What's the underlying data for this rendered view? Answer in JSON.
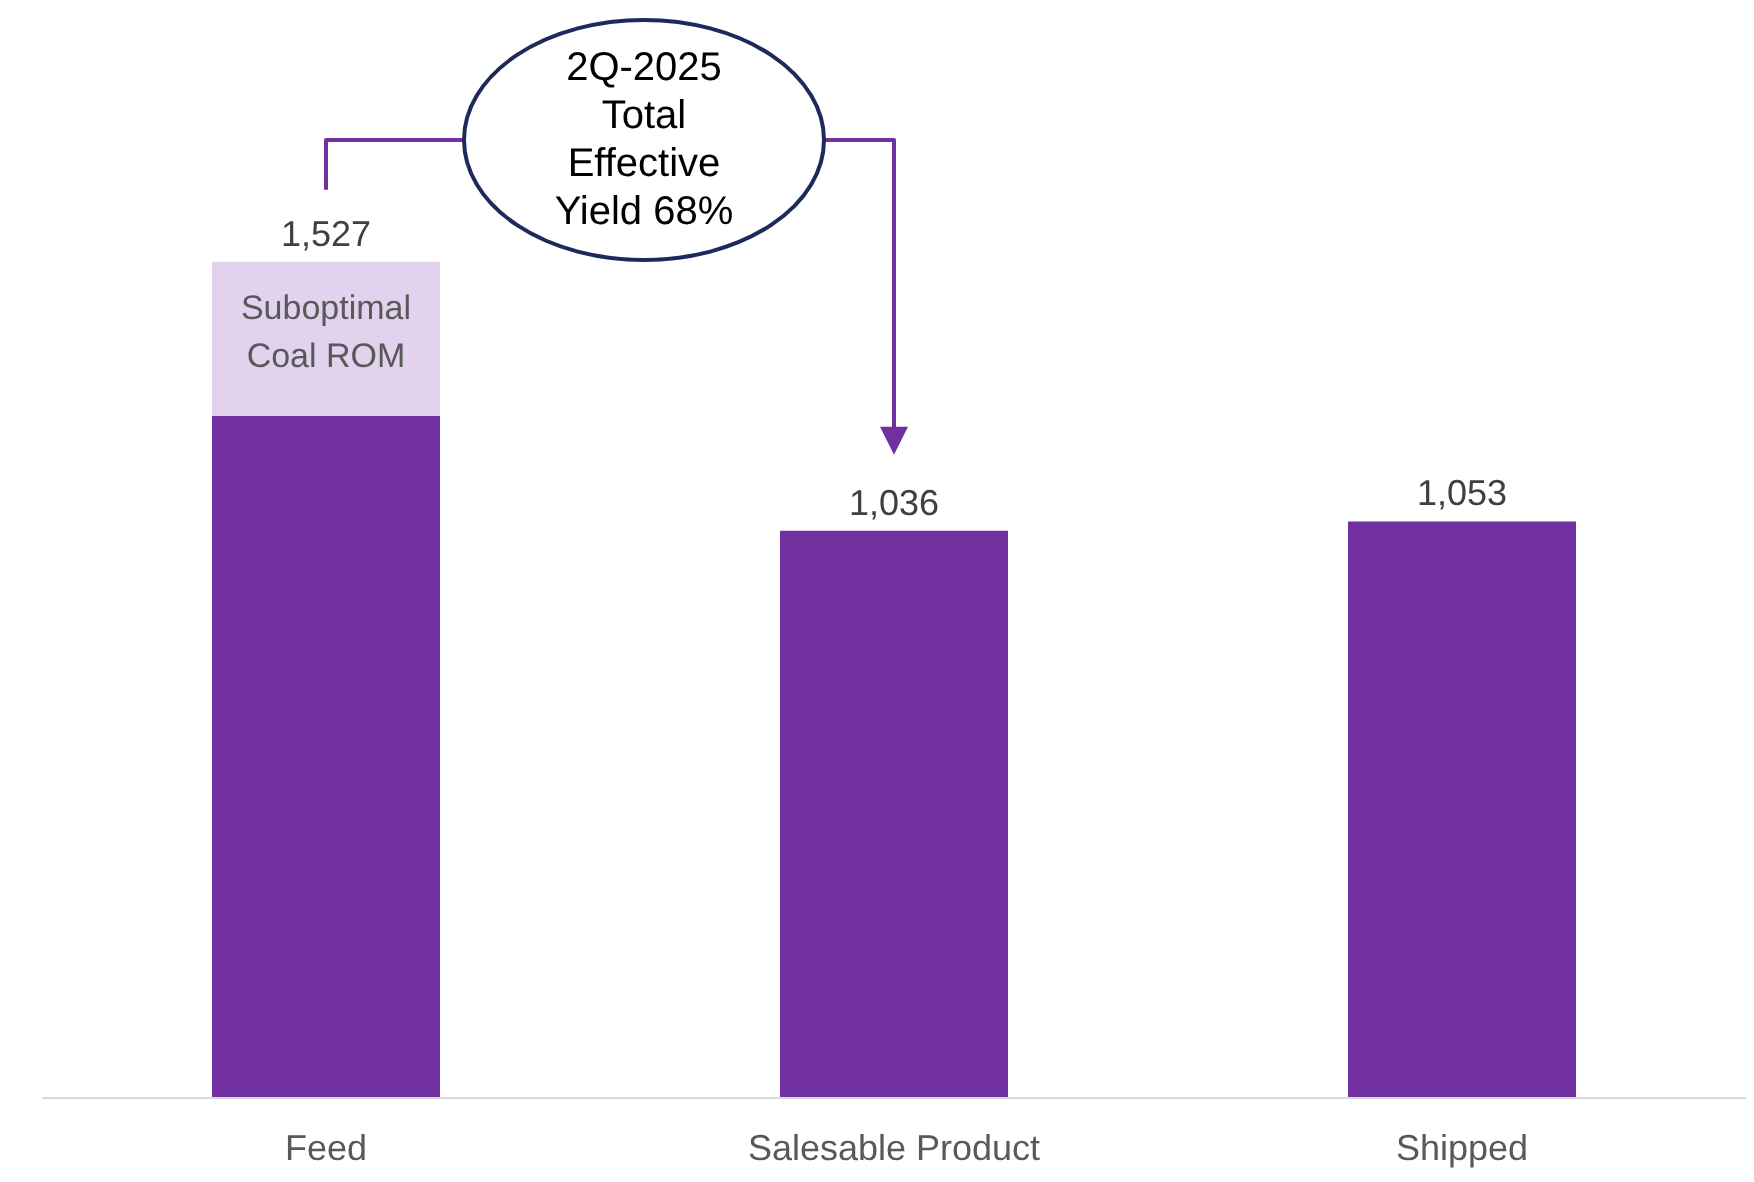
{
  "chart_data": {
    "type": "bar",
    "stacked": true,
    "categories": [
      "Feed",
      "Salesable Product",
      "Shipped"
    ],
    "series": [
      {
        "color": "#7030a0",
        "values": [
          1246,
          1036,
          1053
        ],
        "value_labels": [
          null,
          "1,036",
          "1,053"
        ]
      },
      {
        "name": "Suboptimal Coal ROM",
        "color": "#e2d2ee",
        "values": [
          281,
          null,
          null
        ]
      }
    ],
    "totals": [
      "1,527",
      null,
      null
    ],
    "annotations": [
      "2Q-2025\nTotal\nEffective\nYield 68%"
    ],
    "grid": false,
    "legend": false
  }
}
